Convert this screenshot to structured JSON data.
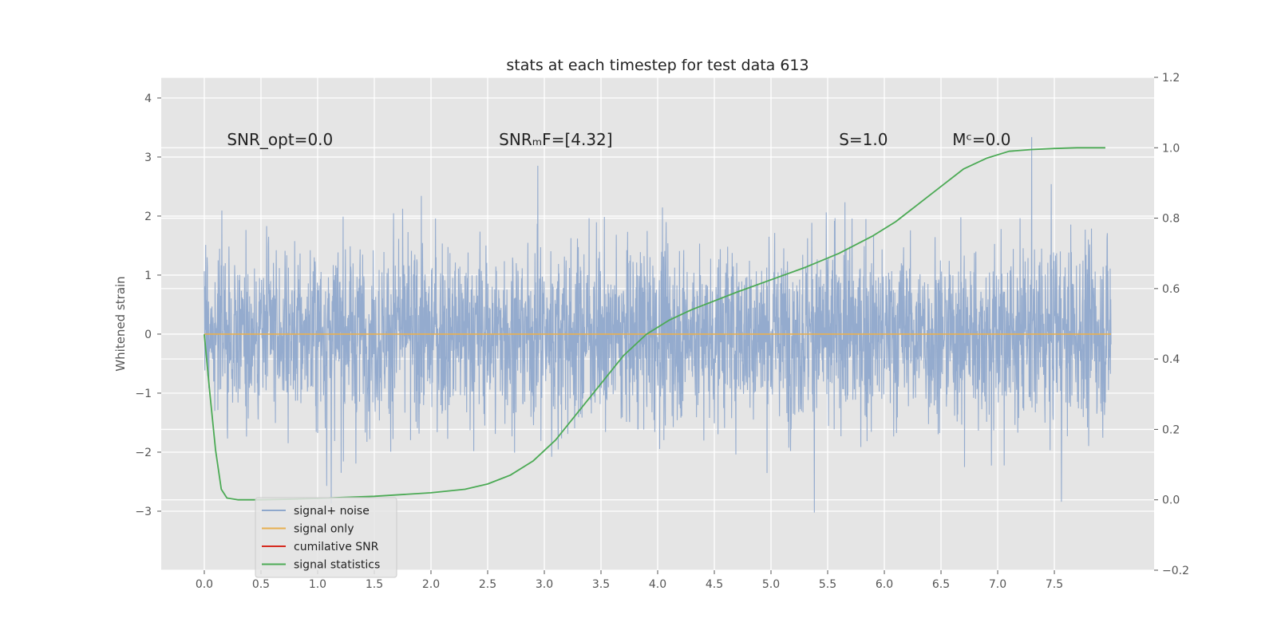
{
  "chart_data": {
    "type": "line",
    "title": "stats at each timestep for test data 613",
    "ylabel": "Whitened strain",
    "xlim": [
      -0.38,
      8.38
    ],
    "ylim": [
      -4.0,
      4.35
    ],
    "y2lim": [
      -0.2,
      1.2
    ],
    "x_ticks": [
      0.0,
      0.5,
      1.0,
      1.5,
      2.0,
      2.5,
      3.0,
      3.5,
      4.0,
      4.5,
      5.0,
      5.5,
      6.0,
      6.5,
      7.0,
      7.5
    ],
    "x_tick_labels": [
      "0.0",
      "0.5",
      "1.0",
      "1.5",
      "2.0",
      "2.5",
      "3.0",
      "3.5",
      "4.0",
      "4.5",
      "5.0",
      "5.5",
      "6.0",
      "6.5",
      "7.0",
      "7.5"
    ],
    "y_ticks": [
      -3,
      -2,
      -1,
      0,
      1,
      2,
      3,
      4
    ],
    "y_tick_labels": [
      "−3",
      "−2",
      "−1",
      "0",
      "1",
      "2",
      "3",
      "4"
    ],
    "y2_ticks": [
      -0.2,
      0.0,
      0.2,
      0.4,
      0.6,
      0.8,
      1.0,
      1.2
    ],
    "y2_tick_labels": [
      "−0.2",
      "0.0",
      "0.2",
      "0.4",
      "0.6",
      "0.8",
      "1.0",
      "1.2"
    ],
    "grid": true,
    "legend_position": "lower-left",
    "annotations": [
      {
        "text": "SNR_opt=0.0",
        "x": 0.2,
        "y": 3.2
      },
      {
        "text": "SNRₘF=[4.32]",
        "x": 2.6,
        "y": 3.2
      },
      {
        "text": "S=1.0",
        "x": 5.6,
        "y": 3.2
      },
      {
        "text": "Mᶜ=0.0",
        "x": 6.6,
        "y": 3.2
      }
    ],
    "series": [
      {
        "name": "signal+ noise",
        "color": "#8fa8cc",
        "axis": "left",
        "x_range": [
          0.0,
          8.0
        ],
        "approx_range": [
          -3.5,
          4.0
        ],
        "note_values": "dense noise trace"
      },
      {
        "name": "signal only",
        "color": "#e8b050",
        "axis": "left",
        "x": [
          0.0,
          8.0
        ],
        "y": [
          0.0,
          0.0
        ]
      },
      {
        "name": "cumilative SNR",
        "color": "#d62a1e",
        "axis": "left",
        "x": [],
        "y": []
      },
      {
        "name": "signal statistics",
        "color": "#4caa55",
        "axis": "right",
        "x": [
          0.0,
          0.05,
          0.1,
          0.15,
          0.2,
          0.3,
          0.5,
          0.8,
          1.0,
          1.5,
          2.0,
          2.3,
          2.5,
          2.7,
          2.9,
          3.1,
          3.3,
          3.5,
          3.7,
          3.9,
          4.1,
          4.3,
          4.5,
          4.7,
          5.0,
          5.3,
          5.6,
          5.9,
          6.1,
          6.3,
          6.5,
          6.7,
          6.9,
          7.1,
          7.3,
          7.5,
          7.7,
          7.95
        ],
        "y": [
          0.47,
          0.3,
          0.14,
          0.03,
          0.005,
          0.0,
          0.0,
          0.002,
          0.004,
          0.01,
          0.02,
          0.03,
          0.045,
          0.07,
          0.11,
          0.17,
          0.25,
          0.33,
          0.41,
          0.47,
          0.51,
          0.54,
          0.565,
          0.59,
          0.625,
          0.66,
          0.7,
          0.75,
          0.79,
          0.84,
          0.89,
          0.94,
          0.97,
          0.99,
          0.995,
          0.998,
          1.0,
          1.0
        ]
      }
    ]
  }
}
